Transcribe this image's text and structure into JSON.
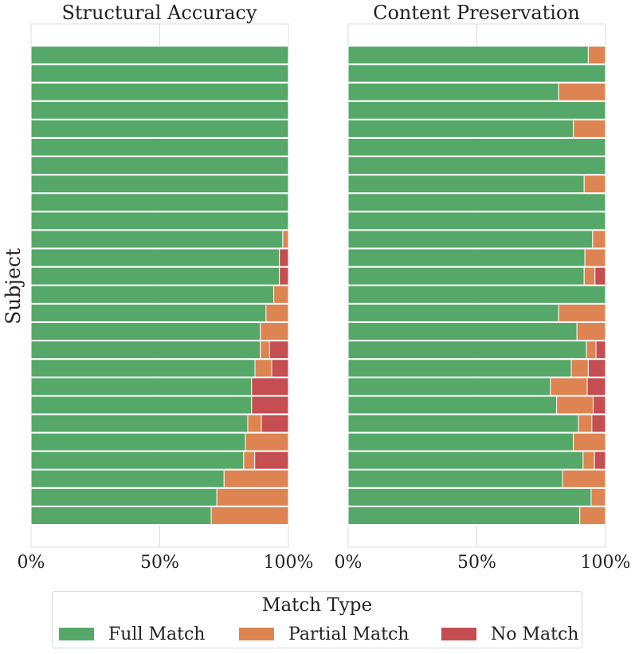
{
  "chart_data": {
    "type": "bar",
    "orientation": "horizontal",
    "stacked": true,
    "normalized": true,
    "ylabel": "Subject",
    "xticks": [
      "0%",
      "50%",
      "100%"
    ],
    "xlim": [
      0,
      100
    ],
    "grid": true,
    "legend": {
      "title": "Match Type",
      "placement": "bottom-center",
      "entries": [
        "Full Match",
        "Partial Match",
        "No Match"
      ]
    },
    "colors": {
      "Full Match": "#55a868",
      "Partial Match": "#dd8452",
      "No Match": "#c44e52"
    },
    "panels": [
      {
        "title": "Structural Accuracy",
        "series": [
          {
            "name": "Full Match",
            "values": [
              100,
              100,
              100,
              100,
              100,
              100,
              100,
              100,
              100,
              100,
              97.8,
              96.5,
              96.5,
              94.3,
              91.3,
              89.1,
              89.1,
              87.0,
              85.7,
              85.7,
              84.2,
              83.3,
              82.6,
              75.0,
              72.2,
              70.0
            ]
          },
          {
            "name": "Partial Match",
            "values": [
              0,
              0,
              0,
              0,
              0,
              0,
              0,
              0,
              0,
              0,
              2.2,
              0,
              0,
              5.7,
              8.7,
              10.9,
              3.6,
              6.5,
              0,
              0,
              5.3,
              16.7,
              4.3,
              25.0,
              27.8,
              30.0
            ]
          },
          {
            "name": "No Match",
            "values": [
              0,
              0,
              0,
              0,
              0,
              0,
              0,
              0,
              0,
              0,
              0,
              3.5,
              3.5,
              0,
              0,
              0,
              7.3,
              6.5,
              14.3,
              14.3,
              10.5,
              0,
              13.1,
              0,
              0,
              0
            ]
          }
        ]
      },
      {
        "title": "Content Preservation",
        "series": [
          {
            "name": "Full Match",
            "values": [
              93.3,
              100,
              81.8,
              100,
              87.5,
              100,
              100,
              91.7,
              100,
              100,
              95.0,
              92.0,
              91.7,
              100,
              81.8,
              88.9,
              92.6,
              86.7,
              78.6,
              81.0,
              89.5,
              87.5,
              91.3,
              83.3,
              94.4,
              90.0
            ]
          },
          {
            "name": "Partial Match",
            "values": [
              6.7,
              0,
              18.2,
              0,
              12.5,
              0,
              0,
              8.3,
              0,
              0,
              5.0,
              8.0,
              4.2,
              0,
              18.2,
              11.1,
              3.7,
              6.6,
              14.3,
              14.2,
              5.2,
              12.5,
              4.4,
              16.7,
              5.6,
              10.0
            ]
          },
          {
            "name": "No Match",
            "values": [
              0,
              0,
              0,
              0,
              0,
              0,
              0,
              0,
              0,
              0,
              0,
              0,
              4.1,
              0,
              0,
              0,
              3.7,
              6.7,
              7.1,
              4.8,
              5.3,
              0,
              4.3,
              0,
              0,
              0
            ]
          }
        ]
      }
    ]
  }
}
